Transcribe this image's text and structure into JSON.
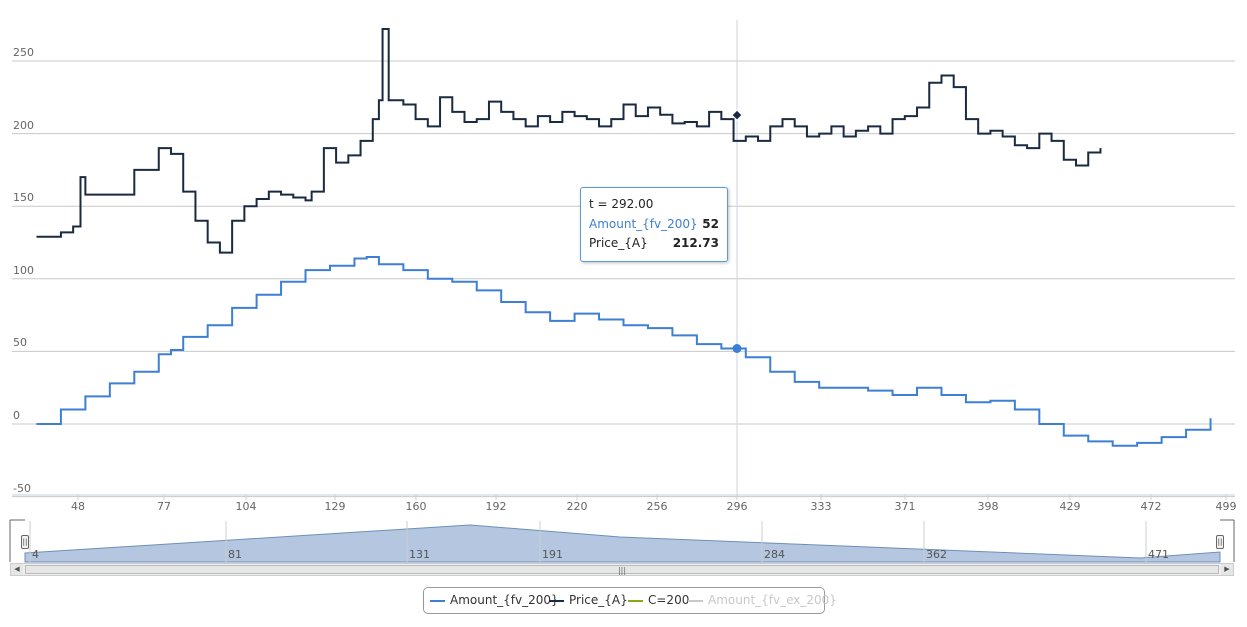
{
  "chart_data": {
    "type": "line",
    "title": "",
    "xlabel": "",
    "ylabel": "",
    "x_ticks": [
      "48",
      "77",
      "104",
      "129",
      "160",
      "192",
      "220",
      "256",
      "296",
      "333",
      "371",
      "398",
      "429",
      "472",
      "499"
    ],
    "y_ticks": [
      "250",
      "200",
      "150",
      "100",
      "50",
      "0",
      "-50"
    ],
    "ylim": [
      -50,
      250
    ],
    "grid": true,
    "legend_position": "bottom",
    "series": [
      {
        "name": "Amount_{fv_200}",
        "color": "#3d7fd4",
        "points": [
          [
            20,
            0
          ],
          [
            40,
            10
          ],
          [
            60,
            19
          ],
          [
            80,
            28
          ],
          [
            100,
            36
          ],
          [
            120,
            48
          ],
          [
            130,
            51
          ],
          [
            140,
            60
          ],
          [
            160,
            68
          ],
          [
            180,
            80
          ],
          [
            200,
            89
          ],
          [
            220,
            98
          ],
          [
            240,
            106
          ],
          [
            260,
            109
          ],
          [
            280,
            114
          ],
          [
            290,
            115
          ],
          [
            300,
            110
          ],
          [
            320,
            106
          ],
          [
            340,
            100
          ],
          [
            360,
            98
          ],
          [
            380,
            92
          ],
          [
            400,
            84
          ],
          [
            420,
            77
          ],
          [
            440,
            71
          ],
          [
            460,
            76
          ],
          [
            480,
            72
          ],
          [
            500,
            68
          ],
          [
            520,
            66
          ],
          [
            540,
            61
          ],
          [
            560,
            55
          ],
          [
            580,
            52
          ],
          [
            600,
            46
          ],
          [
            620,
            36
          ],
          [
            640,
            29
          ],
          [
            660,
            25
          ],
          [
            680,
            25
          ],
          [
            700,
            23
          ],
          [
            720,
            20
          ],
          [
            740,
            25
          ],
          [
            760,
            20
          ],
          [
            780,
            15
          ],
          [
            800,
            16
          ],
          [
            820,
            10
          ],
          [
            840,
            0
          ],
          [
            860,
            -8
          ],
          [
            880,
            -12
          ],
          [
            900,
            -15
          ],
          [
            920,
            -13
          ],
          [
            940,
            -9
          ],
          [
            960,
            -4
          ],
          [
            980,
            4
          ]
        ]
      },
      {
        "name": "Price_{A}",
        "color": "#1a2a40",
        "points": [
          [
            20,
            129
          ],
          [
            40,
            132
          ],
          [
            50,
            136
          ],
          [
            56,
            170
          ],
          [
            60,
            158
          ],
          [
            80,
            158
          ],
          [
            100,
            175
          ],
          [
            120,
            190
          ],
          [
            130,
            186
          ],
          [
            140,
            160
          ],
          [
            150,
            140
          ],
          [
            160,
            125
          ],
          [
            170,
            118
          ],
          [
            180,
            140
          ],
          [
            190,
            150
          ],
          [
            200,
            155
          ],
          [
            210,
            160
          ],
          [
            220,
            158
          ],
          [
            230,
            156
          ],
          [
            240,
            154
          ],
          [
            245,
            160
          ],
          [
            255,
            190
          ],
          [
            265,
            180
          ],
          [
            275,
            185
          ],
          [
            285,
            195
          ],
          [
            295,
            210
          ],
          [
            300,
            223
          ],
          [
            303,
            272
          ],
          [
            308,
            223
          ],
          [
            320,
            220
          ],
          [
            330,
            210
          ],
          [
            340,
            205
          ],
          [
            350,
            225
          ],
          [
            360,
            215
          ],
          [
            370,
            208
          ],
          [
            380,
            210
          ],
          [
            390,
            222
          ],
          [
            400,
            215
          ],
          [
            410,
            210
          ],
          [
            420,
            205
          ],
          [
            430,
            212
          ],
          [
            440,
            208
          ],
          [
            450,
            215
          ],
          [
            460,
            212
          ],
          [
            470,
            210
          ],
          [
            480,
            205
          ],
          [
            490,
            210
          ],
          [
            500,
            220
          ],
          [
            510,
            212
          ],
          [
            520,
            218
          ],
          [
            530,
            213
          ],
          [
            540,
            207
          ],
          [
            550,
            208
          ],
          [
            560,
            205
          ],
          [
            570,
            215
          ],
          [
            580,
            210
          ],
          [
            590,
            195
          ],
          [
            600,
            198
          ],
          [
            610,
            195
          ],
          [
            620,
            205
          ],
          [
            630,
            210
          ],
          [
            640,
            205
          ],
          [
            650,
            198
          ],
          [
            660,
            200
          ],
          [
            670,
            205
          ],
          [
            680,
            198
          ],
          [
            690,
            202
          ],
          [
            700,
            205
          ],
          [
            710,
            200
          ],
          [
            720,
            210
          ],
          [
            730,
            212
          ],
          [
            740,
            218
          ],
          [
            750,
            235
          ],
          [
            760,
            240
          ],
          [
            770,
            232
          ],
          [
            780,
            210
          ],
          [
            790,
            200
          ],
          [
            800,
            202
          ],
          [
            810,
            198
          ],
          [
            820,
            192
          ],
          [
            830,
            190
          ],
          [
            840,
            200
          ],
          [
            850,
            195
          ],
          [
            860,
            182
          ],
          [
            870,
            178
          ],
          [
            880,
            187
          ],
          [
            890,
            190
          ]
        ]
      },
      {
        "name": "C=200",
        "color": "#8aa91a",
        "points": []
      },
      {
        "name": "Amount_{fv_ex_200}",
        "color": "#c8c8c8",
        "points": []
      }
    ]
  },
  "tooltip": {
    "header": "t = 292.00",
    "rows": [
      {
        "label": "Amount_{fv_200}",
        "value": "52"
      },
      {
        "label": "Price_{A}",
        "value": "212.73"
      }
    ]
  },
  "navigator": {
    "x_ticks": [
      "4",
      "81",
      "131",
      "191",
      "284",
      "362",
      "471"
    ],
    "handle_glyph": "||",
    "scroll_grip": "|||",
    "left_arrow": "◀",
    "right_arrow": "▶"
  },
  "legend": {
    "items": [
      {
        "label": "Amount_{fv_200}",
        "color": "#3d7fd4"
      },
      {
        "label": "Price_{A}",
        "color": "#1a2a40"
      },
      {
        "label": "C=200",
        "color": "#8aa91a"
      },
      {
        "label": "Amount_{fv_ex_200}",
        "color": "#c8c8c8"
      }
    ]
  }
}
